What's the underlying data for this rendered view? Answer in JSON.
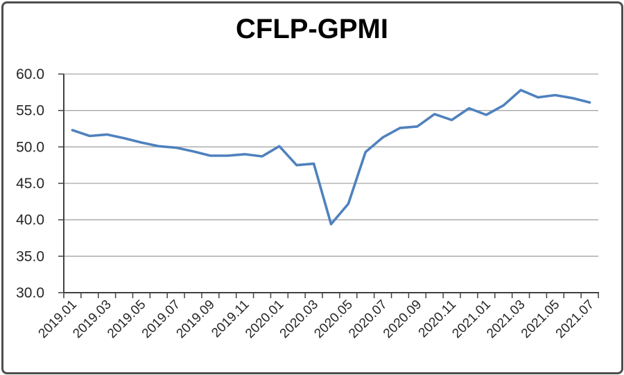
{
  "chart_data": {
    "type": "line",
    "title": "CFLP-GPMI",
    "x": [
      "2019.01",
      "2019.02",
      "2019.03",
      "2019.04",
      "2019.05",
      "2019.06",
      "2019.07",
      "2019.08",
      "2019.09",
      "2019.10",
      "2019.11",
      "2019.12",
      "2020.01",
      "2020.02",
      "2020.03",
      "2020.04",
      "2020.05",
      "2020.06",
      "2020.07",
      "2020.08",
      "2020.09",
      "2020.10",
      "2020.11",
      "2020.12",
      "2021.01",
      "2021.02",
      "2021.03",
      "2021.04",
      "2021.05",
      "2021.06",
      "2021.07"
    ],
    "values": [
      52.3,
      51.5,
      51.7,
      51.2,
      50.6,
      50.1,
      49.9,
      49.4,
      48.8,
      48.8,
      49.0,
      48.7,
      50.1,
      47.5,
      47.7,
      39.4,
      42.2,
      49.3,
      51.3,
      52.6,
      52.8,
      54.5,
      53.7,
      55.3,
      54.4,
      55.7,
      57.8,
      56.8,
      57.1,
      56.7,
      56.1
    ],
    "x_tick_labels": [
      "2019.01",
      "2019.03",
      "2019.05",
      "2019.07",
      "2019.09",
      "2019.11",
      "2020.01",
      "2020.03",
      "2020.05",
      "2020.07",
      "2020.09",
      "2020.11",
      "2021.01",
      "2021.03",
      "2021.05",
      "2021.07"
    ],
    "x_label_every": 2,
    "ytick_labels": [
      "60.0",
      "55.0",
      "50.0",
      "45.0",
      "40.0",
      "35.0",
      "30.0"
    ],
    "ylim": [
      30,
      60
    ],
    "ytick_step": 5,
    "grid": "horizontal",
    "legend": "none",
    "colors": {
      "line": "#4F81BD",
      "axis": "#404040",
      "gridline": "#A6A6A6",
      "text": "#262626",
      "frame_border": "#4D4D4D",
      "background": "#FFFFFF"
    }
  }
}
